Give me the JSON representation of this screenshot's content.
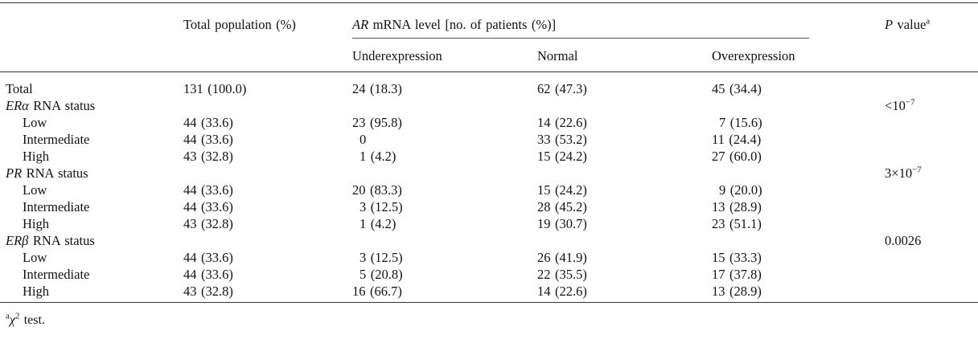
{
  "page": {
    "background": "#ffffff",
    "text_color": "#121212",
    "rule_color": "#333333"
  },
  "table": {
    "header": {
      "total_population": "Total population (%)",
      "ar_group_italic": "AR",
      "ar_group_rest": " mRNA level [no. of patients (%)]",
      "subcolumns": [
        "Underexpression",
        "Normal",
        "Overexpression"
      ],
      "p_value_italic": "P",
      "p_value_rest": " value",
      "p_value_sup": "a"
    },
    "rows": [
      {
        "label_italic": "",
        "label": "Total",
        "indent": false,
        "total": "131 (100.0)",
        "under": "24 (18.3)",
        "normal": "62 (47.3)",
        "over": "45 (34.4)",
        "p_base": "",
        "p_sup": ""
      },
      {
        "label_italic": "ERα",
        "label": " RNA status",
        "indent": false,
        "total": "",
        "under": "",
        "normal": "",
        "over": "",
        "p_base": "<10",
        "p_sup": "−7"
      },
      {
        "label_italic": "",
        "label": "Low",
        "indent": true,
        "total": "44 (33.6)",
        "under": "23 (95.8)",
        "normal": "14 (22.6)",
        "over": "7 (15.6)",
        "p_base": "",
        "p_sup": ""
      },
      {
        "label_italic": "",
        "label": "Intermediate",
        "indent": true,
        "total": "44 (33.6)",
        "under": "0",
        "normal": "33 (53.2)",
        "over": "11 (24.4)",
        "p_base": "",
        "p_sup": ""
      },
      {
        "label_italic": "",
        "label": "High",
        "indent": true,
        "total": "43 (32.8)",
        "under": "1 (4.2)",
        "normal": "15 (24.2)",
        "over": "27 (60.0)",
        "p_base": "",
        "p_sup": ""
      },
      {
        "label_italic": "PR",
        "label": " RNA status",
        "indent": false,
        "total": "",
        "under": "",
        "normal": "",
        "over": "",
        "p_base": "3×10",
        "p_sup": "−7"
      },
      {
        "label_italic": "",
        "label": "Low",
        "indent": true,
        "total": "44 (33.6)",
        "under": "20 (83.3)",
        "normal": "15 (24.2)",
        "over": "9 (20.0)",
        "p_base": "",
        "p_sup": ""
      },
      {
        "label_italic": "",
        "label": "Intermediate",
        "indent": true,
        "total": "44 (33.6)",
        "under": "3 (12.5)",
        "normal": "28 (45.2)",
        "over": "13 (28.9)",
        "p_base": "",
        "p_sup": ""
      },
      {
        "label_italic": "",
        "label": "High",
        "indent": true,
        "total": "43 (32.8)",
        "under": "1 (4.2)",
        "normal": "19 (30.7)",
        "over": "23 (51.1)",
        "p_base": "",
        "p_sup": ""
      },
      {
        "label_italic": "ERβ",
        "label": " RNA status",
        "indent": false,
        "total": "",
        "under": "",
        "normal": "",
        "over": "",
        "p_base": "0.0026",
        "p_sup": ""
      },
      {
        "label_italic": "",
        "label": "Low",
        "indent": true,
        "total": "44 (33.6)",
        "under": "3 (12.5)",
        "normal": "26 (41.9)",
        "over": "15 (33.3)",
        "p_base": "",
        "p_sup": ""
      },
      {
        "label_italic": "",
        "label": "Intermediate",
        "indent": true,
        "total": "44 (33.6)",
        "under": "5 (20.8)",
        "normal": "22 (35.5)",
        "over": "17 (37.8)",
        "p_base": "",
        "p_sup": ""
      },
      {
        "label_italic": "",
        "label": "High",
        "indent": true,
        "total": "43 (32.8)",
        "under": "16 (66.7)",
        "normal": "14 (22.6)",
        "over": "13 (28.9)",
        "p_base": "",
        "p_sup": ""
      }
    ]
  },
  "footnote": {
    "sup": "a",
    "chi": "χ",
    "chi_sup": "2",
    "text": " test."
  }
}
